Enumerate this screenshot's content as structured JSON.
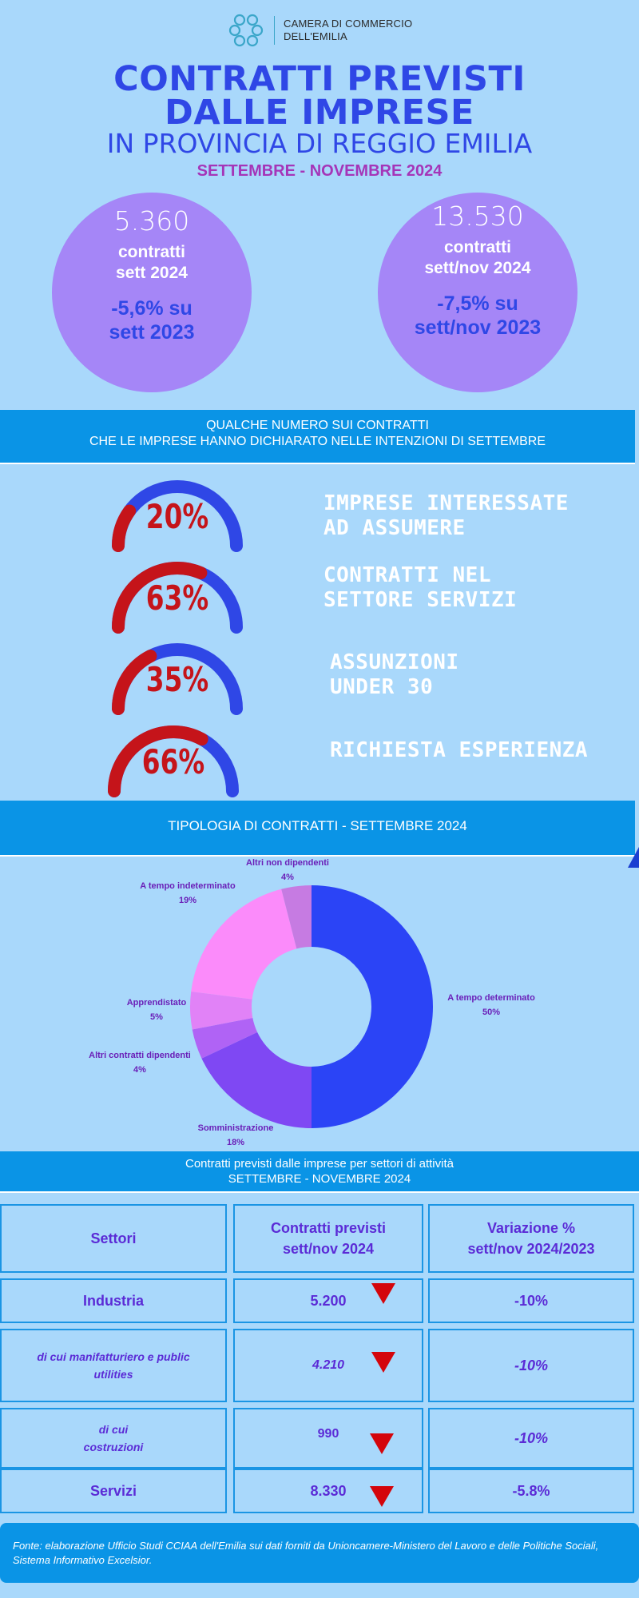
{
  "header": {
    "org_line1": "CAMERA DI COMMERCIO",
    "org_line2": "DELL'EMILIA",
    "title_line1": "CONTRATTI PREVISTI",
    "title_line2": "DALLE IMPRESE",
    "subtitle": "IN PROVINCIA DI REGGIO EMILIA",
    "period": "SETTEMBRE - NOVEMBRE  2024"
  },
  "kpi": [
    {
      "value": "5.360",
      "label1": "contratti",
      "label2": "sett 2024",
      "var1": "-5,6% su",
      "var2": "sett 2023"
    },
    {
      "value": "13.530",
      "label1": "contratti",
      "label2": "sett/nov 2024",
      "var1": "-7,5% su",
      "var2": "sett/nov 2023"
    }
  ],
  "section1": {
    "line1": "QUALCHE NUMERO SUI CONTRATTI",
    "line2": "CHE LE IMPRESE HANNO DICHIARATO NELLE INTENZIONI DI SETTEMBRE"
  },
  "gauges": [
    {
      "value": "20%",
      "fraction": 0.2,
      "label1": "IMPRESE INTERESSATE",
      "label2": "AD ASSUMERE"
    },
    {
      "value": "63%",
      "fraction": 0.63,
      "label1": "CONTRATTI NEL",
      "label2": "SETTORE SERVIZI"
    },
    {
      "value": "35%",
      "fraction": 0.35,
      "label1": "ASSUNZIONI",
      "label2": "UNDER 30"
    },
    {
      "value": "66%",
      "fraction": 0.66,
      "label1": "RICHIESTA ESPERIENZA",
      "label2": ""
    }
  ],
  "colors": {
    "background": "#a9d8fb",
    "title_blue": "#2f47e6",
    "circle": "#a586f7",
    "banner": "#0a94e6",
    "gauge_red": "#c5141a",
    "gauge_blue": "#2f47e6"
  },
  "section2": {
    "title": "TIPOLOGIA DI CONTRATTI - SETTEMBRE  2024"
  },
  "chart_data": {
    "type": "pie",
    "donut": true,
    "slices": [
      {
        "name": "A tempo determinato",
        "label": "50%",
        "value": 50,
        "color": "#2b44f6"
      },
      {
        "name": "Somministrazione",
        "label": "18%",
        "value": 18,
        "color": "#7f48f3"
      },
      {
        "name": "Altri contratti dipendenti",
        "label": "4%",
        "value": 4,
        "color": "#b063f5"
      },
      {
        "name": "Apprendistato",
        "label": "5%",
        "value": 5,
        "color": "#e182f7"
      },
      {
        "name": "A tempo indeterminato",
        "label": "19%",
        "value": 19,
        "color": "#fb8bfa"
      },
      {
        "name": "Altri non dipendenti",
        "label": "4%",
        "value": 4,
        "color": "#c67be2"
      }
    ]
  },
  "section3": {
    "line1": "Contratti previsti dalle imprese per settori di attività",
    "line2": "SETTEMBRE - NOVEMBRE 2024"
  },
  "table": {
    "headers": [
      "Settori",
      "Contratti previsti sett/nov 2024",
      "Variazione % sett/nov  2024/2023"
    ],
    "header_lines": [
      [
        "Settori"
      ],
      [
        "Contratti previsti",
        "sett/nov 2024"
      ],
      [
        "Variazione  %",
        "sett/nov  2024/2023"
      ]
    ],
    "rows": [
      {
        "sector": "Industria",
        "contracts": "5.200",
        "variation": "-10%"
      },
      {
        "sector": "di cui manifatturiero e public utilities",
        "contracts": "4.210",
        "variation": "-10%"
      },
      {
        "sector": "di cui costruzioni",
        "contracts": "990",
        "variation": "-10%"
      },
      {
        "sector": "Servizi",
        "contracts": "8.330",
        "variation": "-5.8%"
      }
    ]
  },
  "footer": {
    "source": "Fonte: elaborazione Ufficio Studi CCIAA dell'Emilia sui dati forniti da Unioncamere-Ministero del Lavoro e delle Politiche Sociali, Sistema Informativo Excelsior."
  }
}
